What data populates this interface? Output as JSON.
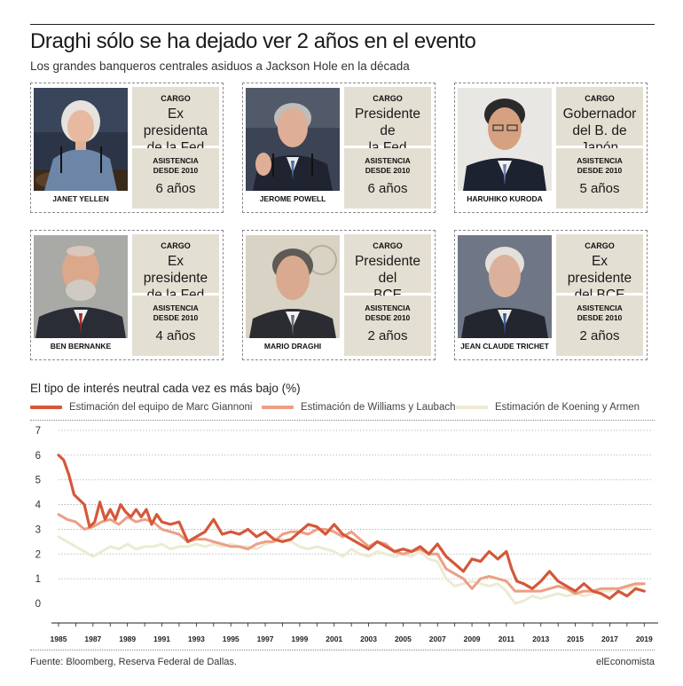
{
  "header": {
    "title": "Draghi sólo se ha dejado ver 2 años en el evento",
    "subtitle": "Los grandes banqueros centrales asiduos a Jackson Hole en la década"
  },
  "labels": {
    "cargo": "CARGO",
    "asistencia_l1": "ASISTENCIA",
    "asistencia_l2": "DESDE 2010"
  },
  "bankers": [
    {
      "name": "JANET YELLEN",
      "cargo_l1": "Ex presidenta",
      "cargo_l2": "de la Fed",
      "asistencia": "6 años"
    },
    {
      "name": "JEROME POWELL",
      "cargo_l1": "Presidente de",
      "cargo_l2": "la Fed",
      "asistencia": "6 años"
    },
    {
      "name": "HARUHIKO KURODA",
      "cargo_l1": "Gobernador",
      "cargo_l2": "del B. de Japón",
      "asistencia": "5 años"
    },
    {
      "name": "BEN BERNANKE",
      "cargo_l1": "Ex presidente",
      "cargo_l2": "de la Fed",
      "asistencia": "4 años"
    },
    {
      "name": "MARIO DRAGHI",
      "cargo_l1": "Presidente del",
      "cargo_l2": "BCE",
      "asistencia": "2 años"
    },
    {
      "name": "JEAN CLAUDE TRICHET",
      "cargo_l1": "Ex presidente",
      "cargo_l2": "del BCE",
      "asistencia": "2 años"
    }
  ],
  "chart_data": {
    "type": "line",
    "title": "El tipo de interés neutral cada vez es más bajo (%)",
    "xlabel": "",
    "ylabel": "",
    "xlim": [
      1985,
      2019.5
    ],
    "ylim": [
      0,
      7
    ],
    "yticks": [
      0,
      1,
      2,
      3,
      4,
      5,
      6,
      7
    ],
    "xticks": [
      1985,
      1987,
      1989,
      1991,
      1993,
      1995,
      1997,
      1999,
      2001,
      2003,
      2005,
      2007,
      2009,
      2011,
      2013,
      2015,
      2017,
      2019
    ],
    "grid": "horizontal-dotted",
    "legend": "top",
    "colors": {
      "giannoni": "#d4583a",
      "williams": "#ec9f85",
      "koening": "#ecebd3",
      "axis": "#222222",
      "grid": "#9a9a9a"
    },
    "series": [
      {
        "name": "Estimación del equipo de Marc Giannoni",
        "key": "giannoni",
        "x": [
          1985,
          1985.3,
          1985.6,
          1985.9,
          1986.2,
          1986.5,
          1986.8,
          1987.1,
          1987.4,
          1987.7,
          1988.0,
          1988.3,
          1988.6,
          1988.9,
          1989.2,
          1989.5,
          1989.8,
          1990.1,
          1990.4,
          1990.7,
          1991.0,
          1991.5,
          1992.0,
          1992.5,
          1993.0,
          1993.5,
          1994.0,
          1994.5,
          1995.0,
          1995.5,
          1996.0,
          1996.5,
          1997.0,
          1997.5,
          1998.0,
          1998.5,
          1999.0,
          1999.5,
          2000.0,
          2000.5,
          2001.0,
          2001.5,
          2002.0,
          2002.5,
          2003.0,
          2003.5,
          2004.0,
          2004.5,
          2005.0,
          2005.5,
          2006.0,
          2006.5,
          2007.0,
          2007.5,
          2008.0,
          2008.5,
          2009.0,
          2009.5,
          2010.0,
          2010.5,
          2011.0,
          2011.3,
          2011.6,
          2012.0,
          2012.5,
          2013.0,
          2013.5,
          2014.0,
          2014.5,
          2015.0,
          2015.5,
          2016.0,
          2016.5,
          2017.0,
          2017.5,
          2018.0,
          2018.5,
          2019.0
        ],
        "values": [
          6.0,
          5.8,
          5.2,
          4.4,
          4.2,
          4.0,
          3.1,
          3.3,
          4.1,
          3.4,
          3.8,
          3.4,
          4.0,
          3.7,
          3.5,
          3.8,
          3.5,
          3.8,
          3.2,
          3.6,
          3.3,
          3.2,
          3.3,
          2.5,
          2.7,
          2.9,
          3.4,
          2.8,
          2.9,
          2.8,
          3.0,
          2.7,
          2.9,
          2.6,
          2.5,
          2.6,
          2.9,
          3.2,
          3.1,
          2.8,
          3.2,
          2.8,
          2.6,
          2.4,
          2.2,
          2.5,
          2.3,
          2.1,
          2.2,
          2.1,
          2.3,
          2.0,
          2.4,
          1.9,
          1.6,
          1.3,
          1.8,
          1.7,
          2.1,
          1.8,
          2.1,
          1.4,
          0.9,
          0.8,
          0.6,
          0.9,
          1.3,
          0.9,
          0.7,
          0.5,
          0.8,
          0.5,
          0.4,
          0.2,
          0.5,
          0.3,
          0.6,
          0.5
        ]
      },
      {
        "name": "Estimación de Williams y Laubach",
        "key": "williams",
        "x": [
          1985,
          1985.5,
          1986.0,
          1986.5,
          1987.0,
          1987.5,
          1988.0,
          1988.5,
          1989.0,
          1989.5,
          1990.0,
          1990.5,
          1991.0,
          1991.5,
          1992.0,
          1992.5,
          1993.0,
          1993.5,
          1994.0,
          1994.5,
          1995.0,
          1995.5,
          1996.0,
          1996.5,
          1997.0,
          1997.5,
          1998.0,
          1998.5,
          1999.0,
          1999.5,
          2000.0,
          2000.5,
          2001.0,
          2001.5,
          2002.0,
          2002.5,
          2003.0,
          2003.5,
          2004.0,
          2004.5,
          2005.0,
          2005.5,
          2006.0,
          2006.5,
          2007.0,
          2007.5,
          2008.0,
          2008.5,
          2009.0,
          2009.5,
          2010.0,
          2010.5,
          2011.0,
          2011.5,
          2012.0,
          2012.5,
          2013.0,
          2013.5,
          2014.0,
          2014.5,
          2015.0,
          2015.5,
          2016.0,
          2016.5,
          2017.0,
          2017.5,
          2018.0,
          2018.5,
          2019.0
        ],
        "values": [
          3.6,
          3.4,
          3.3,
          3.0,
          3.1,
          3.3,
          3.4,
          3.2,
          3.5,
          3.3,
          3.4,
          3.3,
          3.0,
          2.9,
          2.8,
          2.5,
          2.6,
          2.6,
          2.5,
          2.4,
          2.3,
          2.3,
          2.2,
          2.4,
          2.5,
          2.5,
          2.8,
          2.9,
          2.9,
          2.8,
          3.0,
          3.0,
          2.9,
          2.7,
          2.9,
          2.6,
          2.3,
          2.5,
          2.4,
          2.1,
          2.0,
          2.1,
          2.2,
          2.0,
          2.0,
          1.4,
          1.2,
          1.0,
          0.6,
          1.0,
          1.1,
          1.0,
          0.9,
          0.5,
          0.5,
          0.5,
          0.5,
          0.6,
          0.7,
          0.6,
          0.4,
          0.5,
          0.5,
          0.6,
          0.6,
          0.6,
          0.7,
          0.8,
          0.8
        ]
      },
      {
        "name": "Estimación de Koening y Armen",
        "key": "koening",
        "x": [
          1985,
          1985.5,
          1986.0,
          1986.5,
          1987.0,
          1987.5,
          1988.0,
          1988.5,
          1989.0,
          1989.5,
          1990.0,
          1990.5,
          1991.0,
          1991.5,
          1992.0,
          1992.5,
          1993.0,
          1993.5,
          1994.0,
          1994.5,
          1995.0,
          1995.5,
          1996.0,
          1996.5,
          1997.0,
          1997.5,
          1998.0,
          1998.5,
          1999.0,
          1999.5,
          2000.0,
          2000.5,
          2001.0,
          2001.5,
          2002.0,
          2002.5,
          2003.0,
          2003.5,
          2004.0,
          2004.5,
          2005.0,
          2005.5,
          2006.0,
          2006.5,
          2007.0,
          2007.5,
          2008.0,
          2008.5,
          2009.0,
          2009.5,
          2010.0,
          2010.5,
          2011.0,
          2011.5,
          2012.0,
          2012.5,
          2013.0,
          2013.5,
          2014.0,
          2014.5,
          2015.0,
          2015.5,
          2016.0,
          2016.5,
          2017.0,
          2017.5,
          2018.0,
          2018.5,
          2019.0
        ],
        "values": [
          2.7,
          2.5,
          2.3,
          2.1,
          1.9,
          2.1,
          2.3,
          2.2,
          2.4,
          2.2,
          2.3,
          2.3,
          2.4,
          2.2,
          2.3,
          2.3,
          2.4,
          2.3,
          2.4,
          2.3,
          2.4,
          2.3,
          2.3,
          2.2,
          2.4,
          2.5,
          2.6,
          2.5,
          2.3,
          2.2,
          2.3,
          2.2,
          2.1,
          1.9,
          2.2,
          2.0,
          1.9,
          2.1,
          2.0,
          1.9,
          2.0,
          1.9,
          2.1,
          1.8,
          1.7,
          1.0,
          0.7,
          0.8,
          0.9,
          0.8,
          0.7,
          0.8,
          0.5,
          0.0,
          0.1,
          0.3,
          0.2,
          0.3,
          0.4,
          0.3,
          0.4,
          0.3,
          0.4,
          0.5,
          0.5,
          0.6,
          0.6,
          0.7,
          0.8
        ]
      }
    ]
  },
  "footer": {
    "source": "Fuente: Bloomberg, Reserva Federal de Dallas.",
    "brand": "elEconomista"
  }
}
